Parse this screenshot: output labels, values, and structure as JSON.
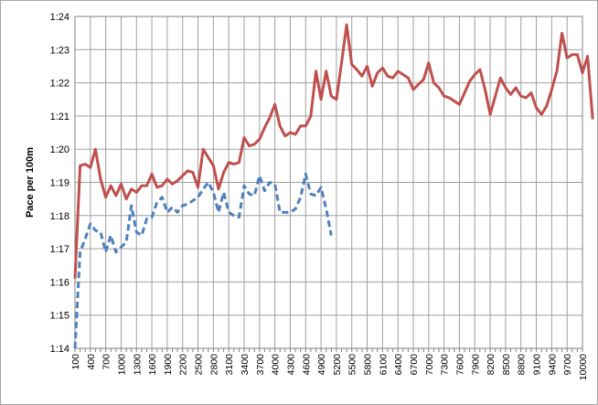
{
  "chart_data": {
    "type": "line",
    "ylabel": "Pace per 100m",
    "xlabel": "",
    "y_unit": "seconds",
    "ylim": [
      74,
      84
    ],
    "y_ticks": [
      "1:14",
      "1:15",
      "1:16",
      "1:17",
      "1:18",
      "1:19",
      "1:20",
      "1:21",
      "1:22",
      "1:23",
      "1:24"
    ],
    "x_tick_labels": [
      "100",
      "400",
      "700",
      "1000",
      "1300",
      "1600",
      "1900",
      "2200",
      "2500",
      "2800",
      "3100",
      "3400",
      "3700",
      "4000",
      "4300",
      "4600",
      "4900",
      "5200",
      "5500",
      "5800",
      "6100",
      "6400",
      "6700",
      "7000",
      "7300",
      "7600",
      "7900",
      "8200",
      "8500",
      "8800",
      "9100",
      "9400",
      "9700",
      "10000"
    ],
    "grid": true,
    "legend": "none",
    "series": [
      {
        "color": "#c0504d",
        "style": "solid",
        "x_start": 100,
        "x_step": 100,
        "values": [
          76.1,
          79.5,
          79.55,
          79.45,
          80.0,
          79.1,
          78.55,
          78.9,
          78.6,
          78.95,
          78.5,
          78.8,
          78.7,
          78.9,
          78.9,
          79.25,
          78.85,
          78.9,
          79.1,
          78.95,
          79.05,
          79.2,
          79.35,
          79.3,
          78.85,
          80.0,
          79.75,
          79.5,
          78.8,
          79.3,
          79.6,
          79.55,
          79.6,
          80.35,
          80.1,
          80.15,
          80.3,
          80.65,
          80.95,
          81.35,
          80.7,
          80.4,
          80.5,
          80.45,
          80.7,
          80.7,
          81.0,
          82.35,
          81.5,
          82.35,
          81.6,
          81.5,
          82.6,
          83.75,
          82.55,
          82.4,
          82.2,
          82.5,
          81.9,
          82.3,
          82.45,
          82.2,
          82.15,
          82.35,
          82.25,
          82.15,
          81.8,
          81.95,
          82.1,
          82.6,
          82.0,
          81.85,
          81.6,
          81.55,
          81.45,
          81.35,
          81.7,
          82.05,
          82.25,
          82.4,
          81.8,
          81.05,
          81.6,
          82.15,
          81.85,
          81.65,
          81.85,
          81.6,
          81.55,
          81.7,
          81.25,
          81.05,
          81.3,
          81.8,
          82.35,
          83.5,
          82.75,
          82.85,
          82.85,
          82.3,
          82.8,
          80.9
        ]
      },
      {
        "color": "#4f81bd",
        "style": "dashed",
        "x_start": 100,
        "x_step": 100,
        "values": [
          74.0,
          76.9,
          77.3,
          77.75,
          77.55,
          77.5,
          76.9,
          77.4,
          76.9,
          77.05,
          77.2,
          78.3,
          77.5,
          77.4,
          77.9,
          77.95,
          78.4,
          78.55,
          78.1,
          78.25,
          78.1,
          78.3,
          78.35,
          78.45,
          78.55,
          78.8,
          79.0,
          78.7,
          78.1,
          78.7,
          78.1,
          78.0,
          77.95,
          78.9,
          78.65,
          78.6,
          79.2,
          78.75,
          79.0,
          78.95,
          78.1,
          78.1,
          78.1,
          78.2,
          78.55,
          79.25,
          78.65,
          78.6,
          78.85,
          78.2,
          77.4
        ]
      }
    ]
  }
}
